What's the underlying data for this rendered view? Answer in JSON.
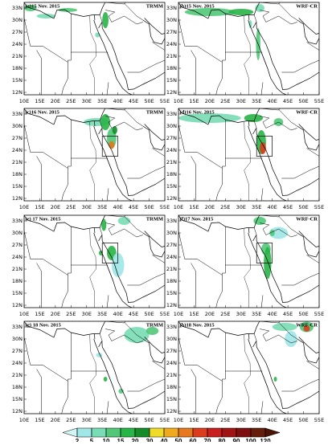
{
  "panels": [
    {
      "label": "(a)15 Nov. 2015",
      "source": "TRMM"
    },
    {
      "label": "(b)15 Nov. 2015",
      "source": "WRF-CR"
    },
    {
      "label": "(c)16 Nov. 2015",
      "source": "TRMM"
    },
    {
      "label": "(d)16 Nov. 2015",
      "source": "WRF-CR"
    },
    {
      "label": "(e) 17 Nov. 2015",
      "source": "TRMM"
    },
    {
      "label": "(f)17 Nov. 2015",
      "source": "WRF-CR"
    },
    {
      "label": "(g) 18 Nov. 2015",
      "source": "TRMM"
    },
    {
      "label": "(h)18 Nov. 2015",
      "source": "WRF-CR"
    }
  ],
  "lon_range": [
    10,
    55
  ],
  "lat_range": [
    11.4,
    34.4
  ],
  "lon_ticks": [
    {
      "value": 10,
      "label": "10E"
    },
    {
      "value": 15,
      "label": "15E"
    },
    {
      "value": 20,
      "label": "20E"
    },
    {
      "value": 25,
      "label": "25E"
    },
    {
      "value": 30,
      "label": "30E"
    },
    {
      "value": 35,
      "label": "35E"
    },
    {
      "value": 40,
      "label": "40E"
    },
    {
      "value": 45,
      "label": "45E"
    },
    {
      "value": 50,
      "label": "50E"
    },
    {
      "value": 55,
      "label": "55E"
    }
  ],
  "lat_ticks": [
    {
      "value": 12,
      "label": "12N"
    },
    {
      "value": 15,
      "label": "15N"
    },
    {
      "value": 18,
      "label": "18N"
    },
    {
      "value": 21,
      "label": "21N"
    },
    {
      "value": 24,
      "label": "24N"
    },
    {
      "value": 27,
      "label": "27N"
    },
    {
      "value": 30,
      "label": "30N"
    },
    {
      "value": 33,
      "label": "33N"
    }
  ],
  "colorbar": {
    "levels": [
      2,
      5,
      10,
      15,
      20,
      30,
      40,
      50,
      60,
      70,
      80,
      90,
      100,
      120
    ],
    "colors": [
      "#d2f5f5",
      "#a0e6e6",
      "#78dcb4",
      "#50c878",
      "#28b446",
      "#148c28",
      "#f0dc28",
      "#f0aa1e",
      "#e6781e",
      "#dc3c1e",
      "#c81e1e",
      "#a01414",
      "#7d0f0f",
      "#641e0a",
      "#4b1405"
    ]
  }
}
